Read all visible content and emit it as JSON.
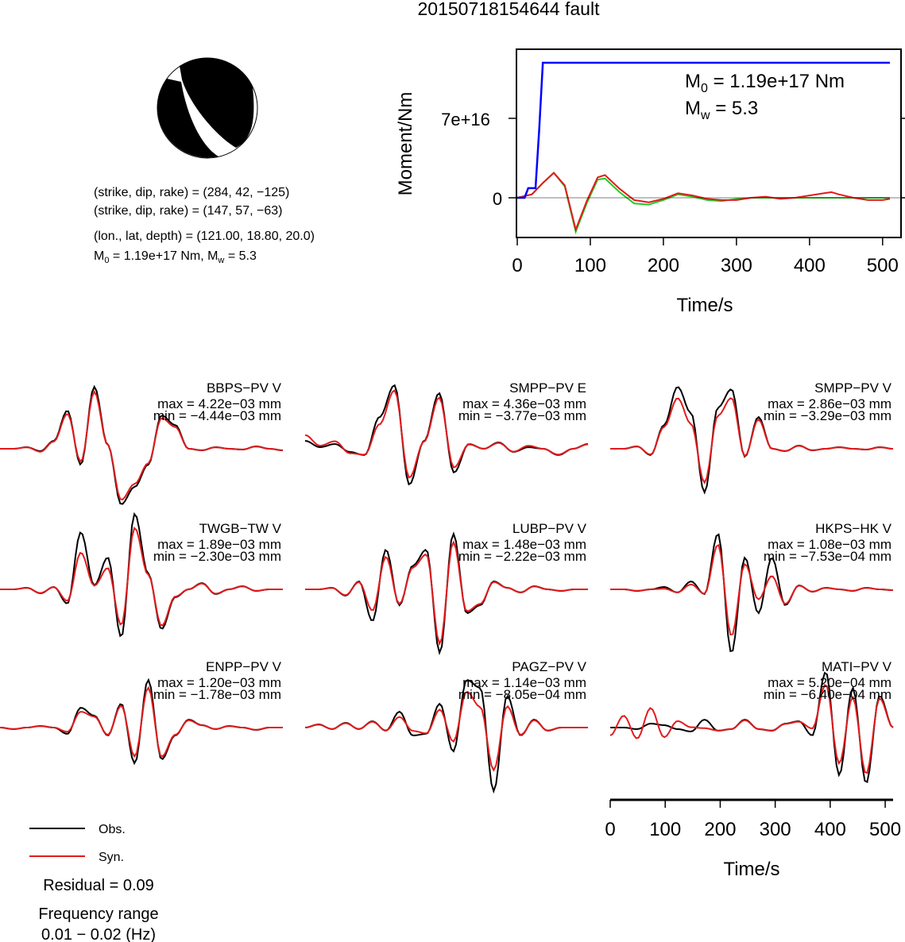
{
  "title": "20150718154644 fault",
  "colors": {
    "obs": "#000000",
    "syn": "#e31a1c",
    "moment": "#0000ff",
    "stf_green": "#22cc22",
    "stf_red": "#e31a1c"
  },
  "mechanism": {
    "np1": "(strike, dip, rake) = (284, 42, −125)",
    "np2": "(strike, dip, rake) = (147, 57, −63)",
    "location": "(lon., lat, depth) = (121.00, 18.80, 20.0)",
    "m0_prefix": "M",
    "m0_sub": "0",
    "m0_rest": " = 1.19e+17 Nm, M",
    "mw_sub": "w",
    "mw_rest": " = 5.3"
  },
  "moment_panel": {
    "ylabel": "Moment/Nm",
    "xlabel": "Time/s",
    "m0_label": "M",
    "m0_sub": "0",
    "m0_value": " = 1.19e+17 Nm",
    "mw_label": "M",
    "mw_sub": "w",
    "mw_value": " = 5.3",
    "ytick_labels": [
      "0",
      "7e+16"
    ],
    "xtick_labels": [
      "0",
      "100",
      "200",
      "300",
      "400",
      "500"
    ]
  },
  "waveform_axis": {
    "xlabel": "Time/s",
    "xtick_labels": [
      "0",
      "100",
      "200",
      "300",
      "400",
      "500"
    ]
  },
  "legend": {
    "obs": "Obs.",
    "syn": "Syn."
  },
  "residual": "Residual = 0.09",
  "frequency": {
    "label": "Frequency range",
    "range": "0.01 − 0.02 (Hz)"
  },
  "stations": [
    {
      "name": "BBPS−PV V",
      "max": "max = 4.22e−03 mm",
      "min": "min = −4.44e−03 mm"
    },
    {
      "name": "SMPP−PV E",
      "max": "max = 4.36e−03 mm",
      "min": "min = −3.77e−03 mm"
    },
    {
      "name": "SMPP−PV V",
      "max": "max = 2.86e−03 mm",
      "min": "min = −3.29e−03 mm"
    },
    {
      "name": "TWGB−TW V",
      "max": "max = 1.89e−03 mm",
      "min": "min = −2.30e−03 mm"
    },
    {
      "name": "LUBP−PV V",
      "max": "max = 1.48e−03 mm",
      "min": "min = −2.22e−03 mm"
    },
    {
      "name": "HKPS−HK V",
      "max": "max = 1.08e−03 mm",
      "min": "min = −7.53e−04 mm"
    },
    {
      "name": "ENPP−PV V",
      "max": "max = 1.20e−03 mm",
      "min": "min = −1.78e−03 mm"
    },
    {
      "name": "PAGZ−PV V",
      "max": "max = 1.14e−03 mm",
      "min": "min = −8.05e−04 mm"
    },
    {
      "name": "MATI−PV V",
      "max": "max = 5.20e−04 mm",
      "min": "min = −6.40e−04 mm"
    }
  ],
  "chart_data": [
    {
      "type": "line",
      "title": "",
      "xlabel": "Time/s",
      "ylabel": "Moment/Nm",
      "xlim": [
        0,
        510
      ],
      "ylim": [
        -3.2e+16,
        1.35e+17
      ],
      "x": [
        0,
        10,
        15,
        25,
        30,
        35,
        510
      ],
      "series": [
        {
          "values": [
            0,
            0,
            8500000000000000.0,
            8500000000000000.0,
            6e+16,
            1.19e+17,
            1.19e+17
          ]
        }
      ],
      "stf_x": [
        0,
        20,
        35,
        50,
        65,
        80,
        95,
        110,
        120,
        140,
        160,
        180,
        200,
        220,
        240,
        260,
        280,
        300,
        320,
        340,
        360,
        380,
        400,
        420,
        430,
        440,
        460,
        480,
        500,
        510
      ],
      "stf_green": [
        0,
        3000000000000000.0,
        1.3e+16,
        2.2e+16,
        1e+16,
        -3e+16,
        -5000000000000000.0,
        1.6e+16,
        1.7e+16,
        5000000000000000.0,
        -5000000000000000.0,
        -6000000000000000.0,
        -2000000000000000.0,
        3000000000000000.0,
        1000000000000000.0,
        -2000000000000000.0,
        -3000000000000000.0,
        -1000000000000000.0,
        0,
        0,
        0,
        0,
        0,
        0,
        0,
        0,
        0,
        0,
        0,
        0
      ],
      "stf_red": [
        0,
        3000000000000000.0,
        1.3e+16,
        2.2e+16,
        1.1e+16,
        -2.8e+16,
        -3000000000000000.0,
        1.8e+16,
        2e+16,
        8000000000000000.0,
        -2000000000000000.0,
        -4000000000000000.0,
        -1000000000000000.0,
        4000000000000000.0,
        2000000000000000.0,
        -1000000000000000.0,
        -2000000000000000.0,
        -2000000000000000.0,
        0,
        1000000000000000.0,
        -1000000000000000.0,
        0,
        2000000000000000.0,
        4000000000000000.0,
        5000000000000000.0,
        3000000000000000.0,
        0,
        -2000000000000000.0,
        -2000000000000000.0,
        -1000000000000000.0
      ]
    }
  ]
}
